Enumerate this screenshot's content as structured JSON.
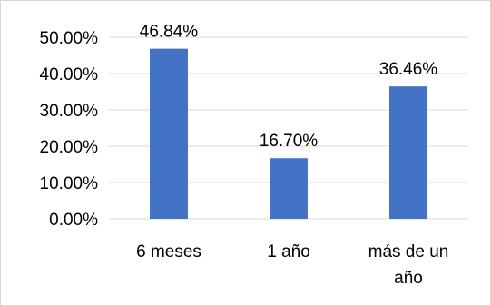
{
  "chart_data": {
    "type": "bar",
    "categories": [
      "6 meses",
      "1 año",
      "más de un año"
    ],
    "category_lines": [
      [
        "6 meses"
      ],
      [
        "1 año"
      ],
      [
        "más de un",
        "año"
      ]
    ],
    "values": [
      46.84,
      16.7,
      36.46
    ],
    "data_labels": [
      "46.84%",
      "16.70%",
      "36.46%"
    ],
    "ylim": [
      0,
      50
    ],
    "yticks": [
      0,
      10,
      20,
      30,
      40,
      50
    ],
    "ytick_labels": [
      "0.00%",
      "10.00%",
      "20.00%",
      "30.00%",
      "40.00%",
      "50.00%"
    ],
    "grid": true,
    "legend": "none",
    "colors": {
      "bar": "#4472c4",
      "grid": "#d9d9d9",
      "text": "#000000"
    }
  }
}
